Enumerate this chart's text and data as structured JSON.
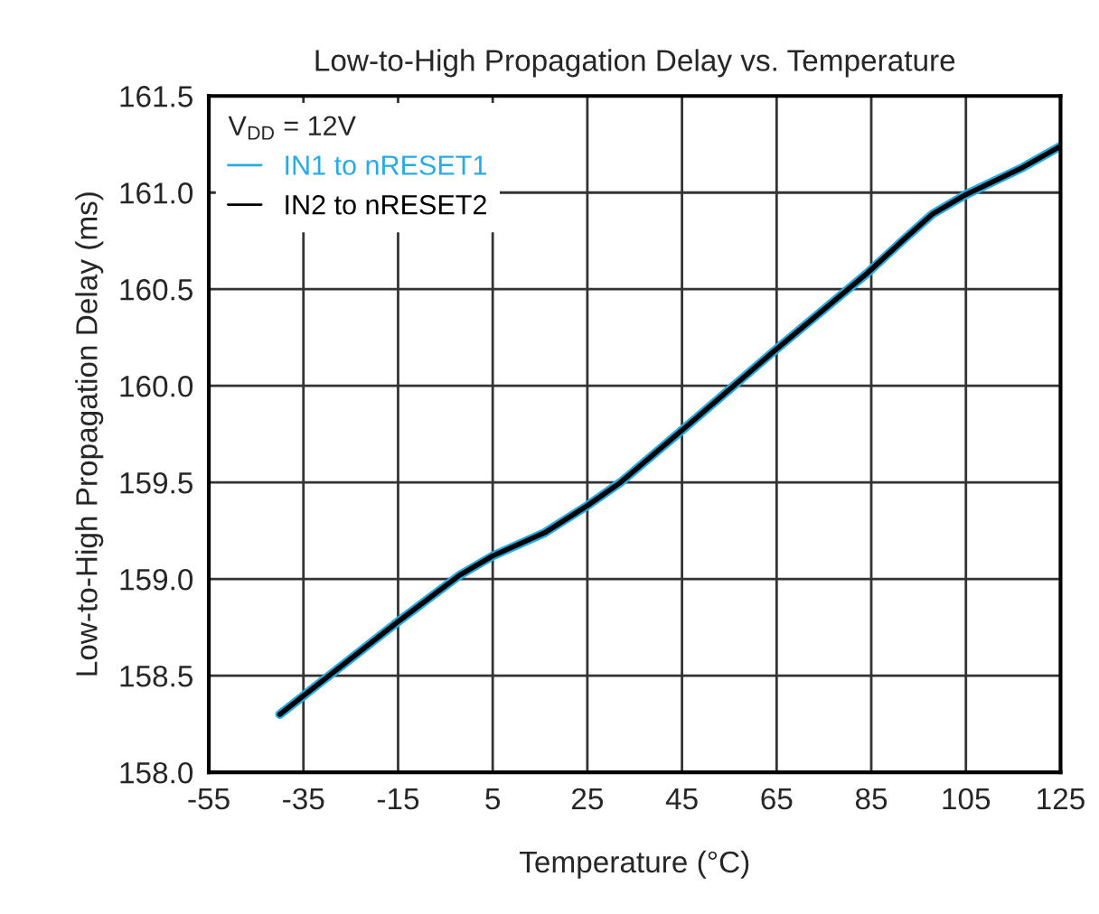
{
  "chart_data": {
    "type": "line",
    "title": "Low-to-High Propagation Delay vs. Temperature",
    "xlabel": "Temperature (°C)",
    "ylabel": "Low-to-High Propagation Delay (ms)",
    "legend_title": "V$_{DD}$ = 12V",
    "x": [
      -40,
      -15,
      -2,
      5,
      16,
      25,
      32,
      45,
      64,
      84,
      92,
      98,
      105,
      117,
      125
    ],
    "series": [
      {
        "name": "IN1 to nRESET1",
        "color": "#29abe2",
        "values": [
          158.3,
          158.78,
          159.02,
          159.12,
          159.24,
          159.38,
          159.5,
          159.77,
          160.17,
          160.58,
          160.76,
          160.89,
          160.99,
          161.13,
          161.24
        ]
      },
      {
        "name": "IN2 to nRESET2",
        "color": "#000000",
        "values": [
          158.3,
          158.78,
          159.02,
          159.12,
          159.24,
          159.38,
          159.5,
          159.77,
          160.17,
          160.58,
          160.76,
          160.89,
          160.99,
          161.13,
          161.24
        ]
      }
    ],
    "xlim": [
      -55,
      125
    ],
    "xticks": [
      -55,
      -35,
      -15,
      5,
      25,
      45,
      65,
      85,
      105,
      125
    ],
    "ylim": [
      158,
      161.5
    ],
    "yticks": [
      {
        "value": 158,
        "label": "158.0"
      },
      {
        "value": 158.5,
        "label": "158.5"
      },
      {
        "value": 159,
        "label": "159.0"
      },
      {
        "value": 159.5,
        "label": "159.5"
      },
      {
        "value": 160,
        "label": "160.0"
      },
      {
        "value": 160.5,
        "label": "160.5"
      },
      {
        "value": 161,
        "label": "161.0"
      },
      {
        "value": 161.5,
        "label": "161.5"
      }
    ],
    "grid": true,
    "legend": "top left",
    "line_style": "solid",
    "marker": "none"
  }
}
